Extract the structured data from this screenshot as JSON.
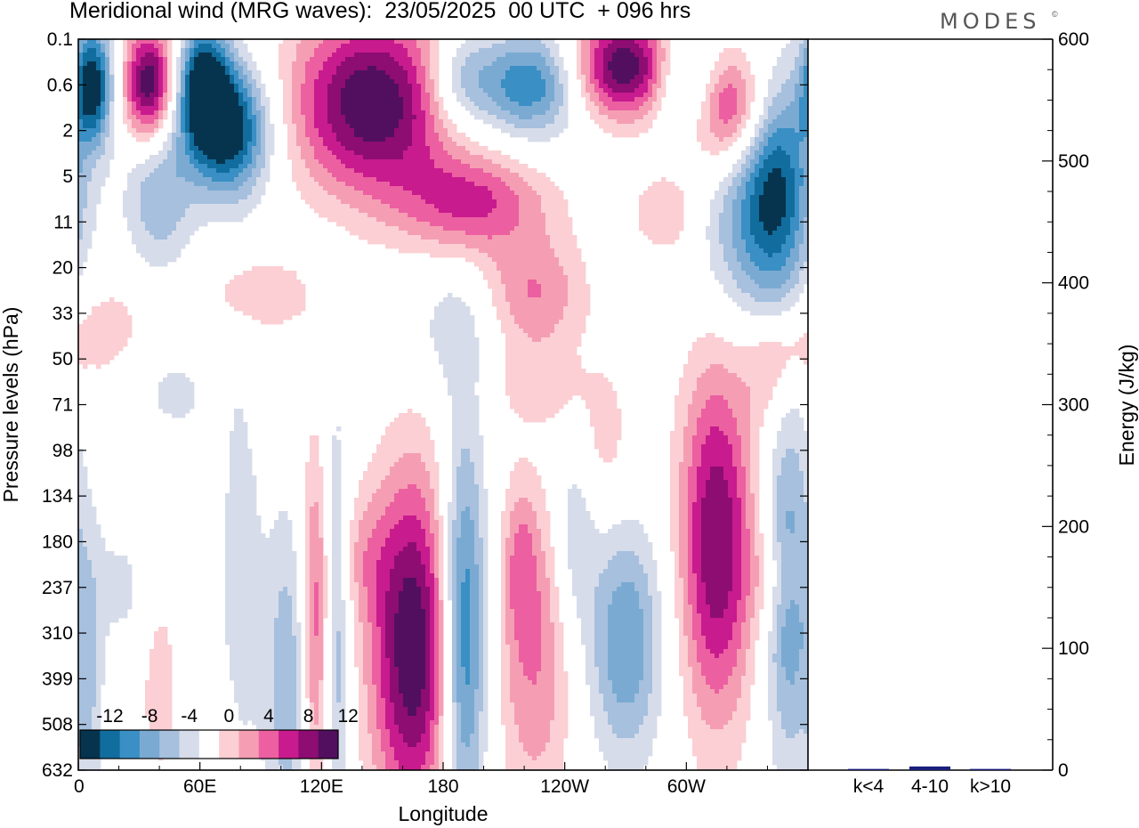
{
  "title": "Meridional wind (MRG waves):  23/05/2025  00 UTC  + 096 hrs",
  "brand": "MODES",
  "brand_mark": "©",
  "colors": {
    "neg": [
      "#06344f",
      "#116d9d",
      "#3a8fc4",
      "#7aaad2",
      "#a6c0de",
      "#d7dcea"
    ],
    "pos": [
      "#fbcfd3",
      "#f59eb3",
      "#ec5fa0",
      "#c81b8e",
      "#8e0d72",
      "#520f60"
    ],
    "bar": "#1a1f7a"
  },
  "chart_data": [
    {
      "type": "heatmap",
      "title": "Meridional wind (MRG waves):  23/05/2025  00 UTC  + 096 hrs",
      "xlabel": "Longitude",
      "ylabel": "Pressure levels (hPa)",
      "x_ticks": [
        "0",
        "60E",
        "120E",
        "180",
        "120W",
        "60W"
      ],
      "x_tick_values": [
        0,
        60,
        120,
        180,
        240,
        300
      ],
      "xlim": [
        0,
        360
      ],
      "y_ticks": [
        "0.1",
        "0.6",
        "2",
        "5",
        "11",
        "20",
        "33",
        "50",
        "71",
        "98",
        "134",
        "180",
        "237",
        "310",
        "399",
        "508",
        "632"
      ],
      "colorbar": {
        "labels": [
          "-12",
          "-8",
          "-4",
          "0",
          "4",
          "8",
          "12"
        ],
        "levels": [
          -14,
          -12,
          -10,
          -8,
          -6,
          -4,
          -2,
          2,
          4,
          6,
          8,
          10,
          12,
          14
        ]
      },
      "features": [
        {
          "lon": 7,
          "lev": 1.0,
          "val": -14,
          "wl": 7,
          "wp": 0.9
        },
        {
          "lon": 35,
          "lev": 1.0,
          "val": 14,
          "wl": 9,
          "wp": 0.9
        },
        {
          "lon": 62,
          "lev": 1.0,
          "val": -14,
          "wl": 9,
          "wp": 0.9
        },
        {
          "lon": 75,
          "lev": 2.0,
          "val": -14,
          "wl": 14,
          "wp": 1.0
        },
        {
          "lon": 145,
          "lev": 1.4,
          "val": 14,
          "wl": 28,
          "wp": 1.4
        },
        {
          "lon": 188,
          "lev": 0.9,
          "val": -6,
          "wl": 12,
          "wp": 0.8
        },
        {
          "lon": 222,
          "lev": 1.0,
          "val": -10,
          "wl": 18,
          "wp": 0.8
        },
        {
          "lon": 270,
          "lev": 0.6,
          "val": 14,
          "wl": 18,
          "wp": 0.8
        },
        {
          "lon": 300,
          "lev": 0.9,
          "val": -8,
          "wl": 12,
          "wp": 0.8
        },
        {
          "lon": 320,
          "lev": 1.5,
          "val": 10,
          "wl": 14,
          "wp": 0.9
        },
        {
          "lon": 345,
          "lev": 3.0,
          "val": -10,
          "wl": 12,
          "wp": 1.6
        },
        {
          "lon": 40,
          "lev": 3.3,
          "val": -6,
          "wl": 12,
          "wp": 1.2
        },
        {
          "lon": 195,
          "lev": 3.6,
          "val": 8,
          "wl": 26,
          "wp": 0.8
        },
        {
          "lon": 290,
          "lev": 3.8,
          "val": 4,
          "wl": 12,
          "wp": 0.7
        },
        {
          "lon": 330,
          "lev": 4.2,
          "val": -6,
          "wl": 18,
          "wp": 1.5
        },
        {
          "lon": 225,
          "lev": 5.6,
          "val": 6,
          "wl": 18,
          "wp": 0.9
        },
        {
          "lon": 90,
          "lev": 5.6,
          "val": 4,
          "wl": 18,
          "wp": 0.6
        },
        {
          "lon": 185,
          "lev": 6.3,
          "val": -3,
          "wl": 16,
          "wp": 1.0
        },
        {
          "lon": 15,
          "lev": 6.3,
          "val": 3,
          "wl": 16,
          "wp": 0.8
        },
        {
          "lon": 350,
          "lev": 6.8,
          "val": 3,
          "wl": 12,
          "wp": 0.6
        },
        {
          "lon": 228,
          "lev": 7.6,
          "val": 3,
          "wl": 16,
          "wp": 0.6
        },
        {
          "lon": 45,
          "lev": 7.8,
          "val": -3,
          "wl": 14,
          "wp": 0.8
        },
        {
          "lon": 140,
          "lev": 11.3,
          "val": 3,
          "wl": 10,
          "wp": 1.0
        },
        {
          "lon": 30,
          "lev": 12.0,
          "val": -3,
          "wl": 18,
          "wp": 1.2
        },
        {
          "lon": 345,
          "lev": 11.8,
          "val": 3,
          "wl": 10,
          "wp": 0.8
        },
        {
          "lon": 105,
          "lev": 14.0,
          "val": -6,
          "wl": 9,
          "wp": 2.6
        },
        {
          "lon": 118,
          "lev": 13.0,
          "val": 10,
          "wl": 6,
          "wp": 2.8
        },
        {
          "lon": 126,
          "lev": 13.0,
          "val": -8,
          "wl": 5,
          "wp": 3.2
        },
        {
          "lon": 165,
          "lev": 13.3,
          "val": 14,
          "wl": 15,
          "wp": 2.7
        },
        {
          "lon": 190,
          "lev": 13.0,
          "val": -12,
          "wl": 8,
          "wp": 3.0
        },
        {
          "lon": 225,
          "lev": 13.5,
          "val": 6,
          "wl": 13,
          "wp": 2.5
        },
        {
          "lon": 218,
          "lev": 11.4,
          "val": 4,
          "wl": 6,
          "wp": 1.2
        },
        {
          "lon": 270,
          "lev": 13.2,
          "val": -8,
          "wl": 13,
          "wp": 1.8
        },
        {
          "lon": 315,
          "lev": 11.0,
          "val": 12,
          "wl": 13,
          "wp": 2.8
        },
        {
          "lon": 350,
          "lev": 12.0,
          "val": -8,
          "wl": 8,
          "wp": 2.8
        },
        {
          "lon": 40,
          "lev": 12.8,
          "val": 4,
          "wl": 8,
          "wp": 2.5
        },
        {
          "lon": 5,
          "lev": 14.2,
          "val": -4,
          "wl": 5,
          "wp": 2.5
        },
        {
          "lon": 80,
          "lev": 11.5,
          "val": -3,
          "wl": 8,
          "wp": 3.5
        },
        {
          "lon": 245,
          "lev": 10.8,
          "val": -4,
          "wl": 7,
          "wp": 1.5
        },
        {
          "lon": 260,
          "lev": 8.8,
          "val": 3,
          "wl": 10,
          "wp": 1.2
        },
        {
          "lon": 340,
          "lev": 7.4,
          "val": 3,
          "wl": 8,
          "wp": 0.8
        }
      ]
    },
    {
      "type": "bar",
      "categories": [
        "k<4",
        "4-10",
        "k>10"
      ],
      "values": [
        1,
        3,
        1
      ],
      "ylabel": "Energy (J/kg)",
      "ylim": [
        0,
        600
      ],
      "y_ticks": [
        "0",
        "100",
        "200",
        "300",
        "400",
        "500",
        "600"
      ]
    }
  ]
}
